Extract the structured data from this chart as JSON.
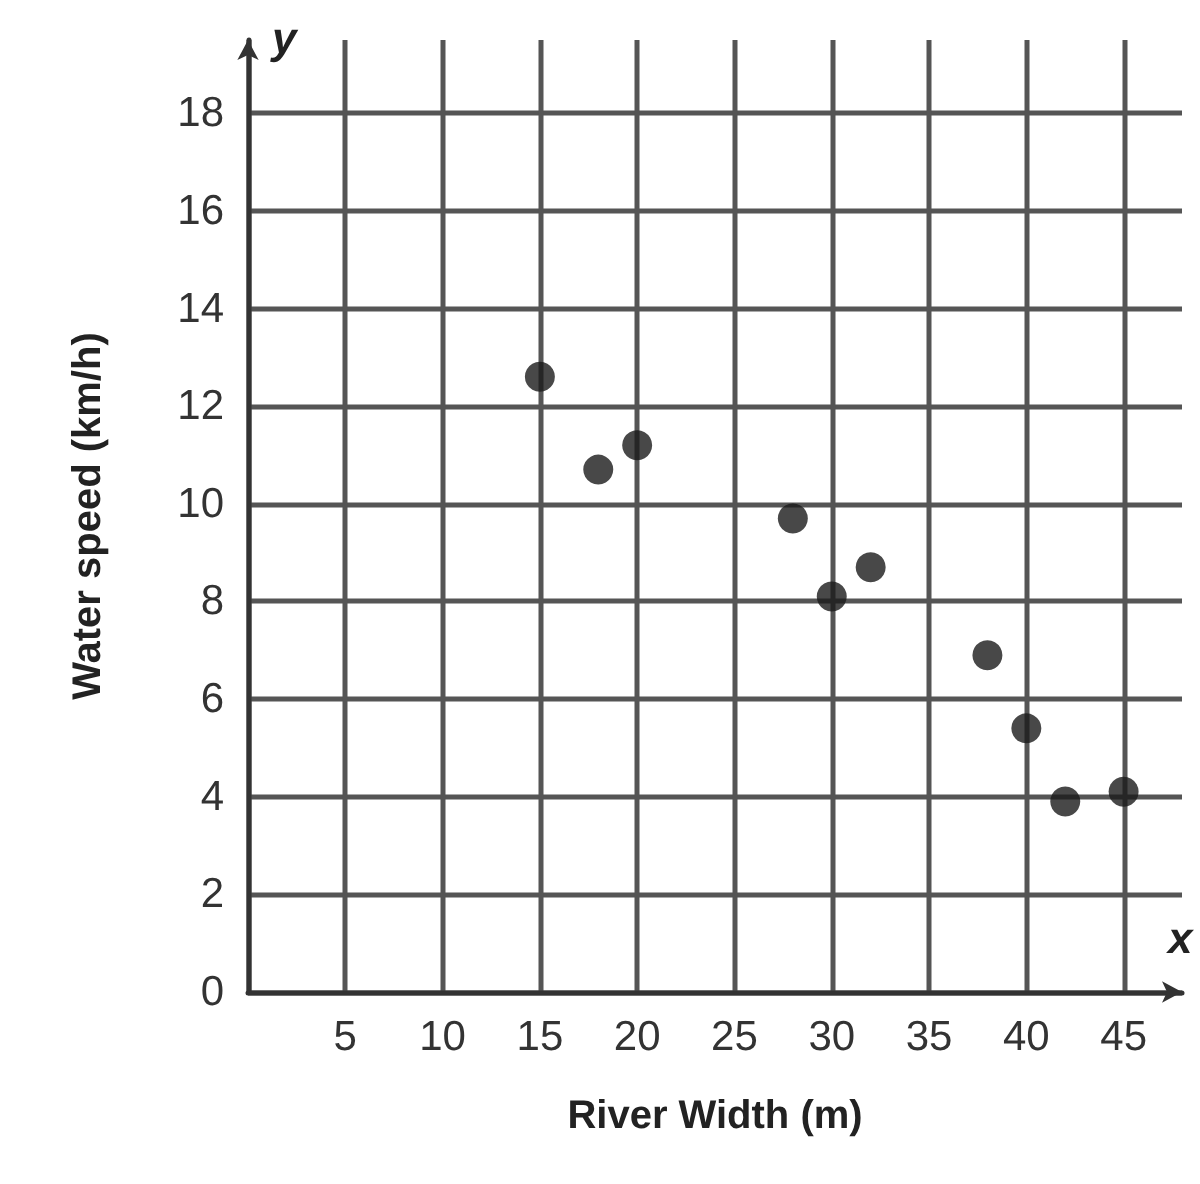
{
  "chart_data": {
    "type": "scatter",
    "xlabel": "River Width (m)",
    "ylabel": "Water speed (km/h)",
    "annotations": [
      "y",
      "x"
    ],
    "x": [
      15,
      18,
      20,
      28,
      30,
      32,
      38,
      40,
      42,
      45
    ],
    "values": [
      12.6,
      10.7,
      11.2,
      9.7,
      8.1,
      8.7,
      6.9,
      5.4,
      3.9,
      4.1
    ],
    "color": "#1a1a1a",
    "marker": "circle",
    "xlim": [
      0,
      48
    ],
    "xticks": [
      {
        "value": 0,
        "label": null
      },
      5,
      10,
      15,
      20,
      25,
      30,
      35,
      40,
      45
    ],
    "ylim": [
      0,
      19.5
    ],
    "yticks": [
      0,
      2,
      4,
      6,
      8,
      10,
      12,
      14,
      16,
      18
    ],
    "grid": true
  }
}
